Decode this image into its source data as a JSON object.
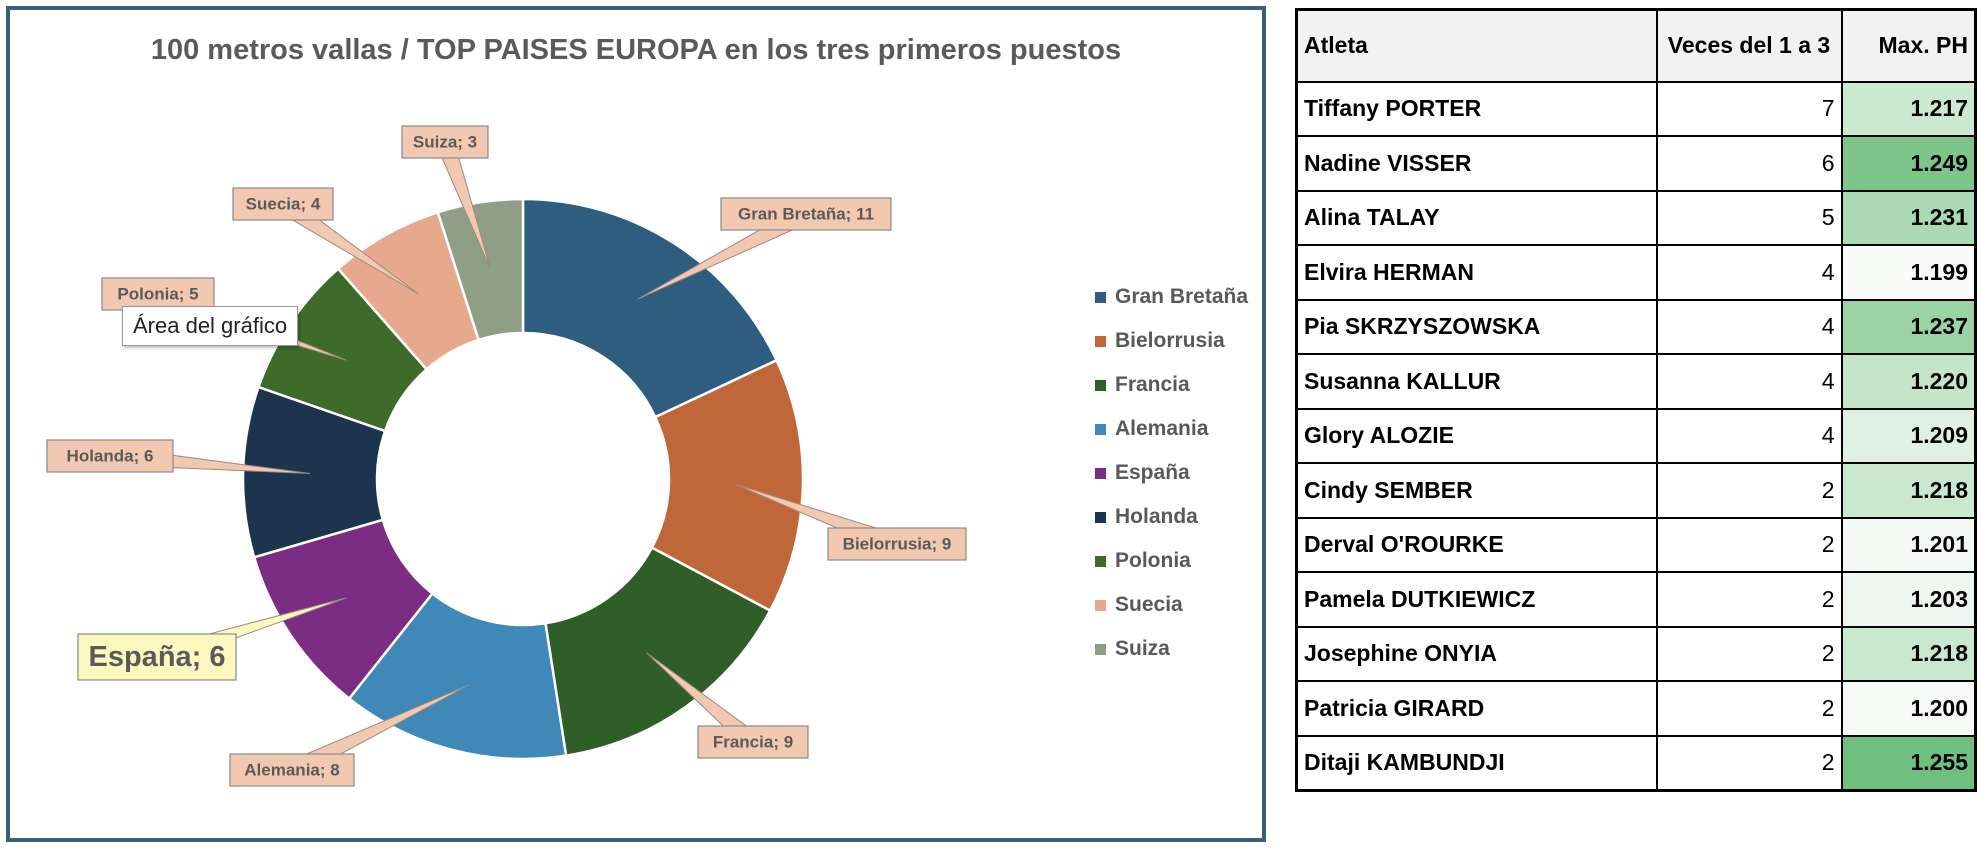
{
  "chart_data": {
    "type": "donut",
    "title": "100 metros vallas / TOP  PAISES EUROPA en los tres primeros puestos",
    "categories": [
      "Gran Bretaña",
      "Bielorrusia",
      "Francia",
      "Alemania",
      "España",
      "Holanda",
      "Polonia",
      "Suecia",
      "Suiza"
    ],
    "values": [
      11,
      9,
      9,
      8,
      6,
      6,
      5,
      4,
      3
    ],
    "colors": [
      "#2e5d80",
      "#c0673a",
      "#2f5e28",
      "#3f88b7",
      "#7b2d83",
      "#1c344d",
      "#3e6a2a",
      "#e6a98e",
      "#8f9f86"
    ],
    "data_labels": [
      "Gran Bretaña; 11",
      "Bielorrusia; 9",
      "Francia; 9",
      "Alemania; 8",
      "España; 6",
      "Holanda; 6",
      "Polonia; 5",
      "Suecia; 4",
      "Suiza; 3"
    ],
    "highlighted_label": "España",
    "legend_position": "right"
  },
  "tooltip": "Área del gráfico",
  "table": {
    "headers": [
      "Atleta",
      "Veces del 1 a 3",
      "Max. PH"
    ],
    "rows": [
      {
        "name": "Tiffany PORTER",
        "times": "7",
        "ph": "1.217"
      },
      {
        "name": "Nadine VISSER",
        "times": "6",
        "ph": "1.249"
      },
      {
        "name": "Alina TALAY",
        "times": "5",
        "ph": "1.231"
      },
      {
        "name": "Elvira HERMAN",
        "times": "4",
        "ph": "1.199"
      },
      {
        "name": "Pia SKRZYSZOWSKA",
        "times": "4",
        "ph": "1.237"
      },
      {
        "name": "Susanna KALLUR",
        "times": "4",
        "ph": "1.220"
      },
      {
        "name": "Glory ALOZIE",
        "times": "4",
        "ph": "1.209"
      },
      {
        "name": "Cindy SEMBER",
        "times": "2",
        "ph": "1.218"
      },
      {
        "name": "Derval O'ROURKE",
        "times": "2",
        "ph": "1.201"
      },
      {
        "name": "Pamela DUTKIEWICZ",
        "times": "2",
        "ph": "1.203"
      },
      {
        "name": "Josephine ONYIA",
        "times": "2",
        "ph": "1.218"
      },
      {
        "name": "Patricia GIRARD",
        "times": "2",
        "ph": "1.200"
      },
      {
        "name": "Ditaji KAMBUNDJI",
        "times": "2",
        "ph": "1.255"
      }
    ],
    "heat_colors": {
      "low": "#f8fbf8",
      "high": "#6fbf7f"
    }
  }
}
